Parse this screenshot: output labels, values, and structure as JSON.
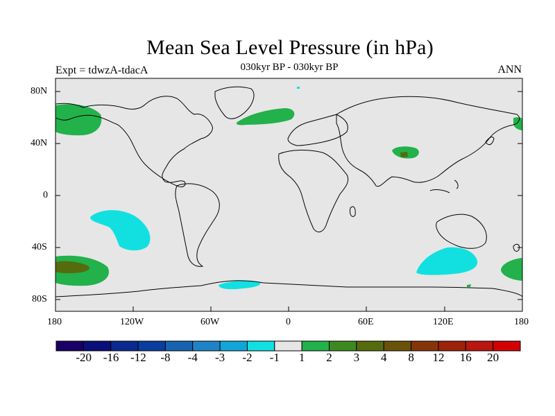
{
  "header": {
    "title": "Mean Sea Level Pressure (in hPa)",
    "left_label": "Expt = tdwzA-tdacA",
    "center_label": "030kyr BP - 030kyr BP",
    "right_label": "ANN"
  },
  "map": {
    "background": "#e6e6e6",
    "y_ticks": [
      "80N",
      "40N",
      "0",
      "40S",
      "80S"
    ],
    "x_ticks": [
      "180",
      "120W",
      "60W",
      "0",
      "60E",
      "120E",
      "180"
    ]
  },
  "colorbar": {
    "colors": [
      "#1a0066",
      "#0b0f7a",
      "#0a2a90",
      "#0a3e9e",
      "#1664b0",
      "#1f84c6",
      "#12a6d8",
      "#12e0e0",
      "#e6e6e6",
      "#22b14a",
      "#3c8a1f",
      "#556b0e",
      "#6a5208",
      "#84360a",
      "#9c220a",
      "#b8160e",
      "#d40000"
    ],
    "labels": [
      "-20",
      "-16",
      "-12",
      "-8",
      "-4",
      "-3",
      "-2",
      "-1",
      "1",
      "2",
      "3",
      "4",
      "8",
      "12",
      "16",
      "20"
    ]
  }
}
